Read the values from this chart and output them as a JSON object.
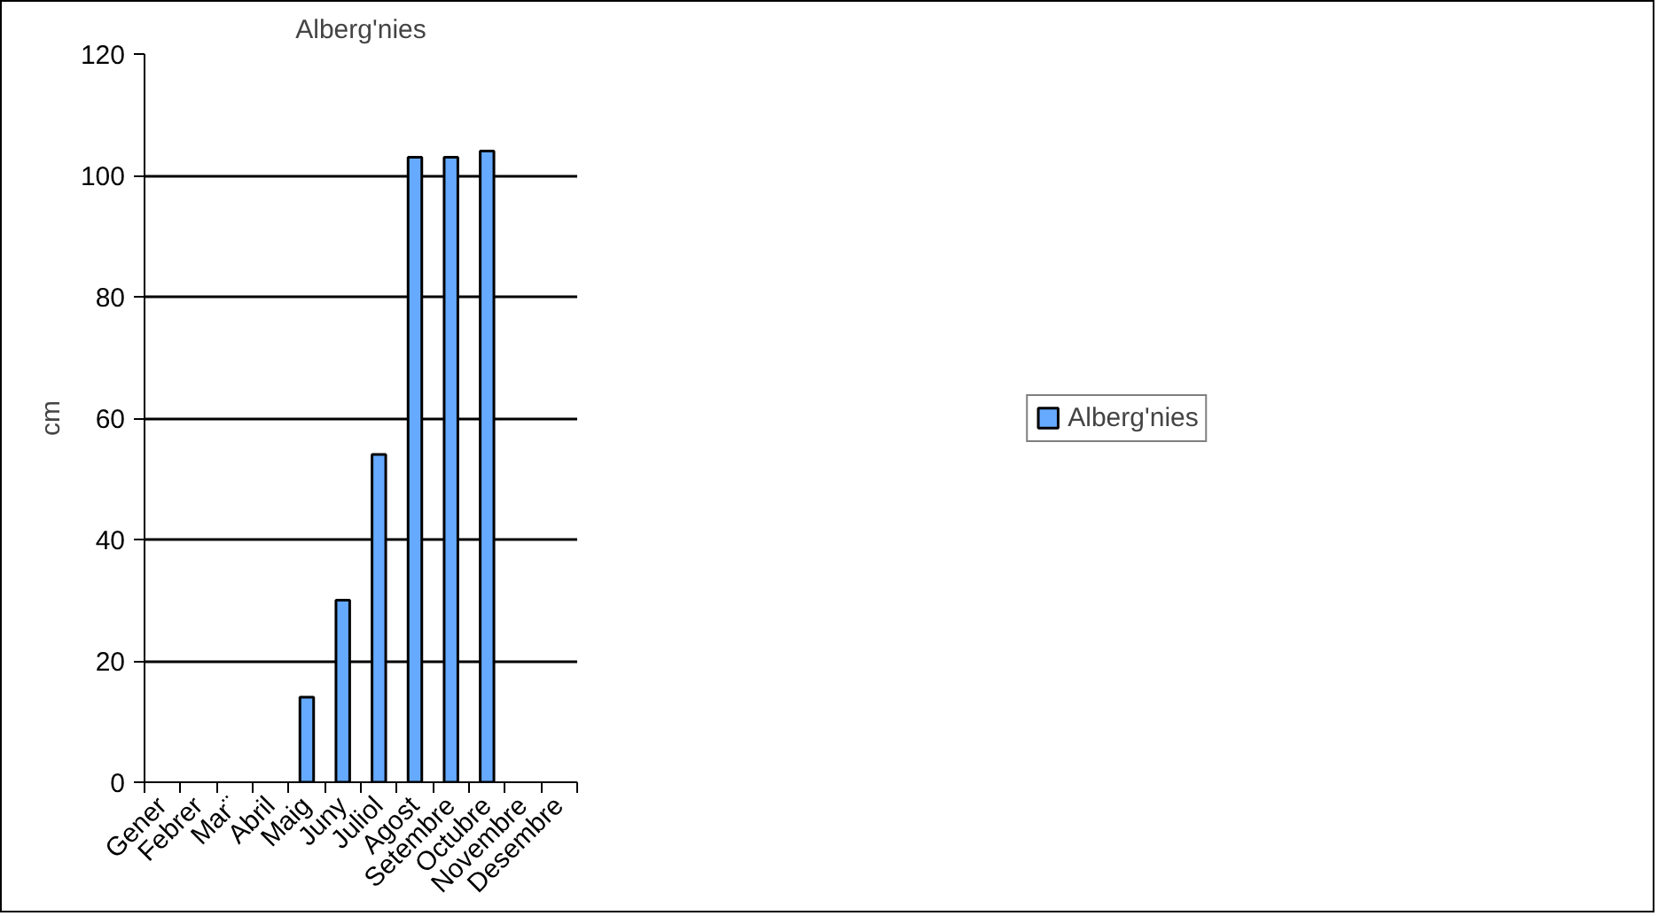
{
  "chart_data": {
    "type": "bar",
    "title": "Alberg'nies",
    "ylabel": "cm",
    "categories": [
      "Gener",
      "Febrer",
      "Mar¨",
      "Abril",
      "Maig",
      "Juny",
      "Juliol",
      "Agost",
      "Setembre",
      "Octubre",
      "Novembre",
      "Desembre"
    ],
    "series": [
      {
        "name": "Alberg'nies",
        "color": "#66aaff",
        "values": [
          null,
          null,
          null,
          null,
          14,
          30,
          54,
          103,
          103,
          104,
          null,
          null
        ]
      }
    ],
    "ylim": [
      0,
      120
    ],
    "yticks": [
      0,
      20,
      40,
      60,
      80,
      100,
      120
    ],
    "grid": "y",
    "legend": "right"
  }
}
